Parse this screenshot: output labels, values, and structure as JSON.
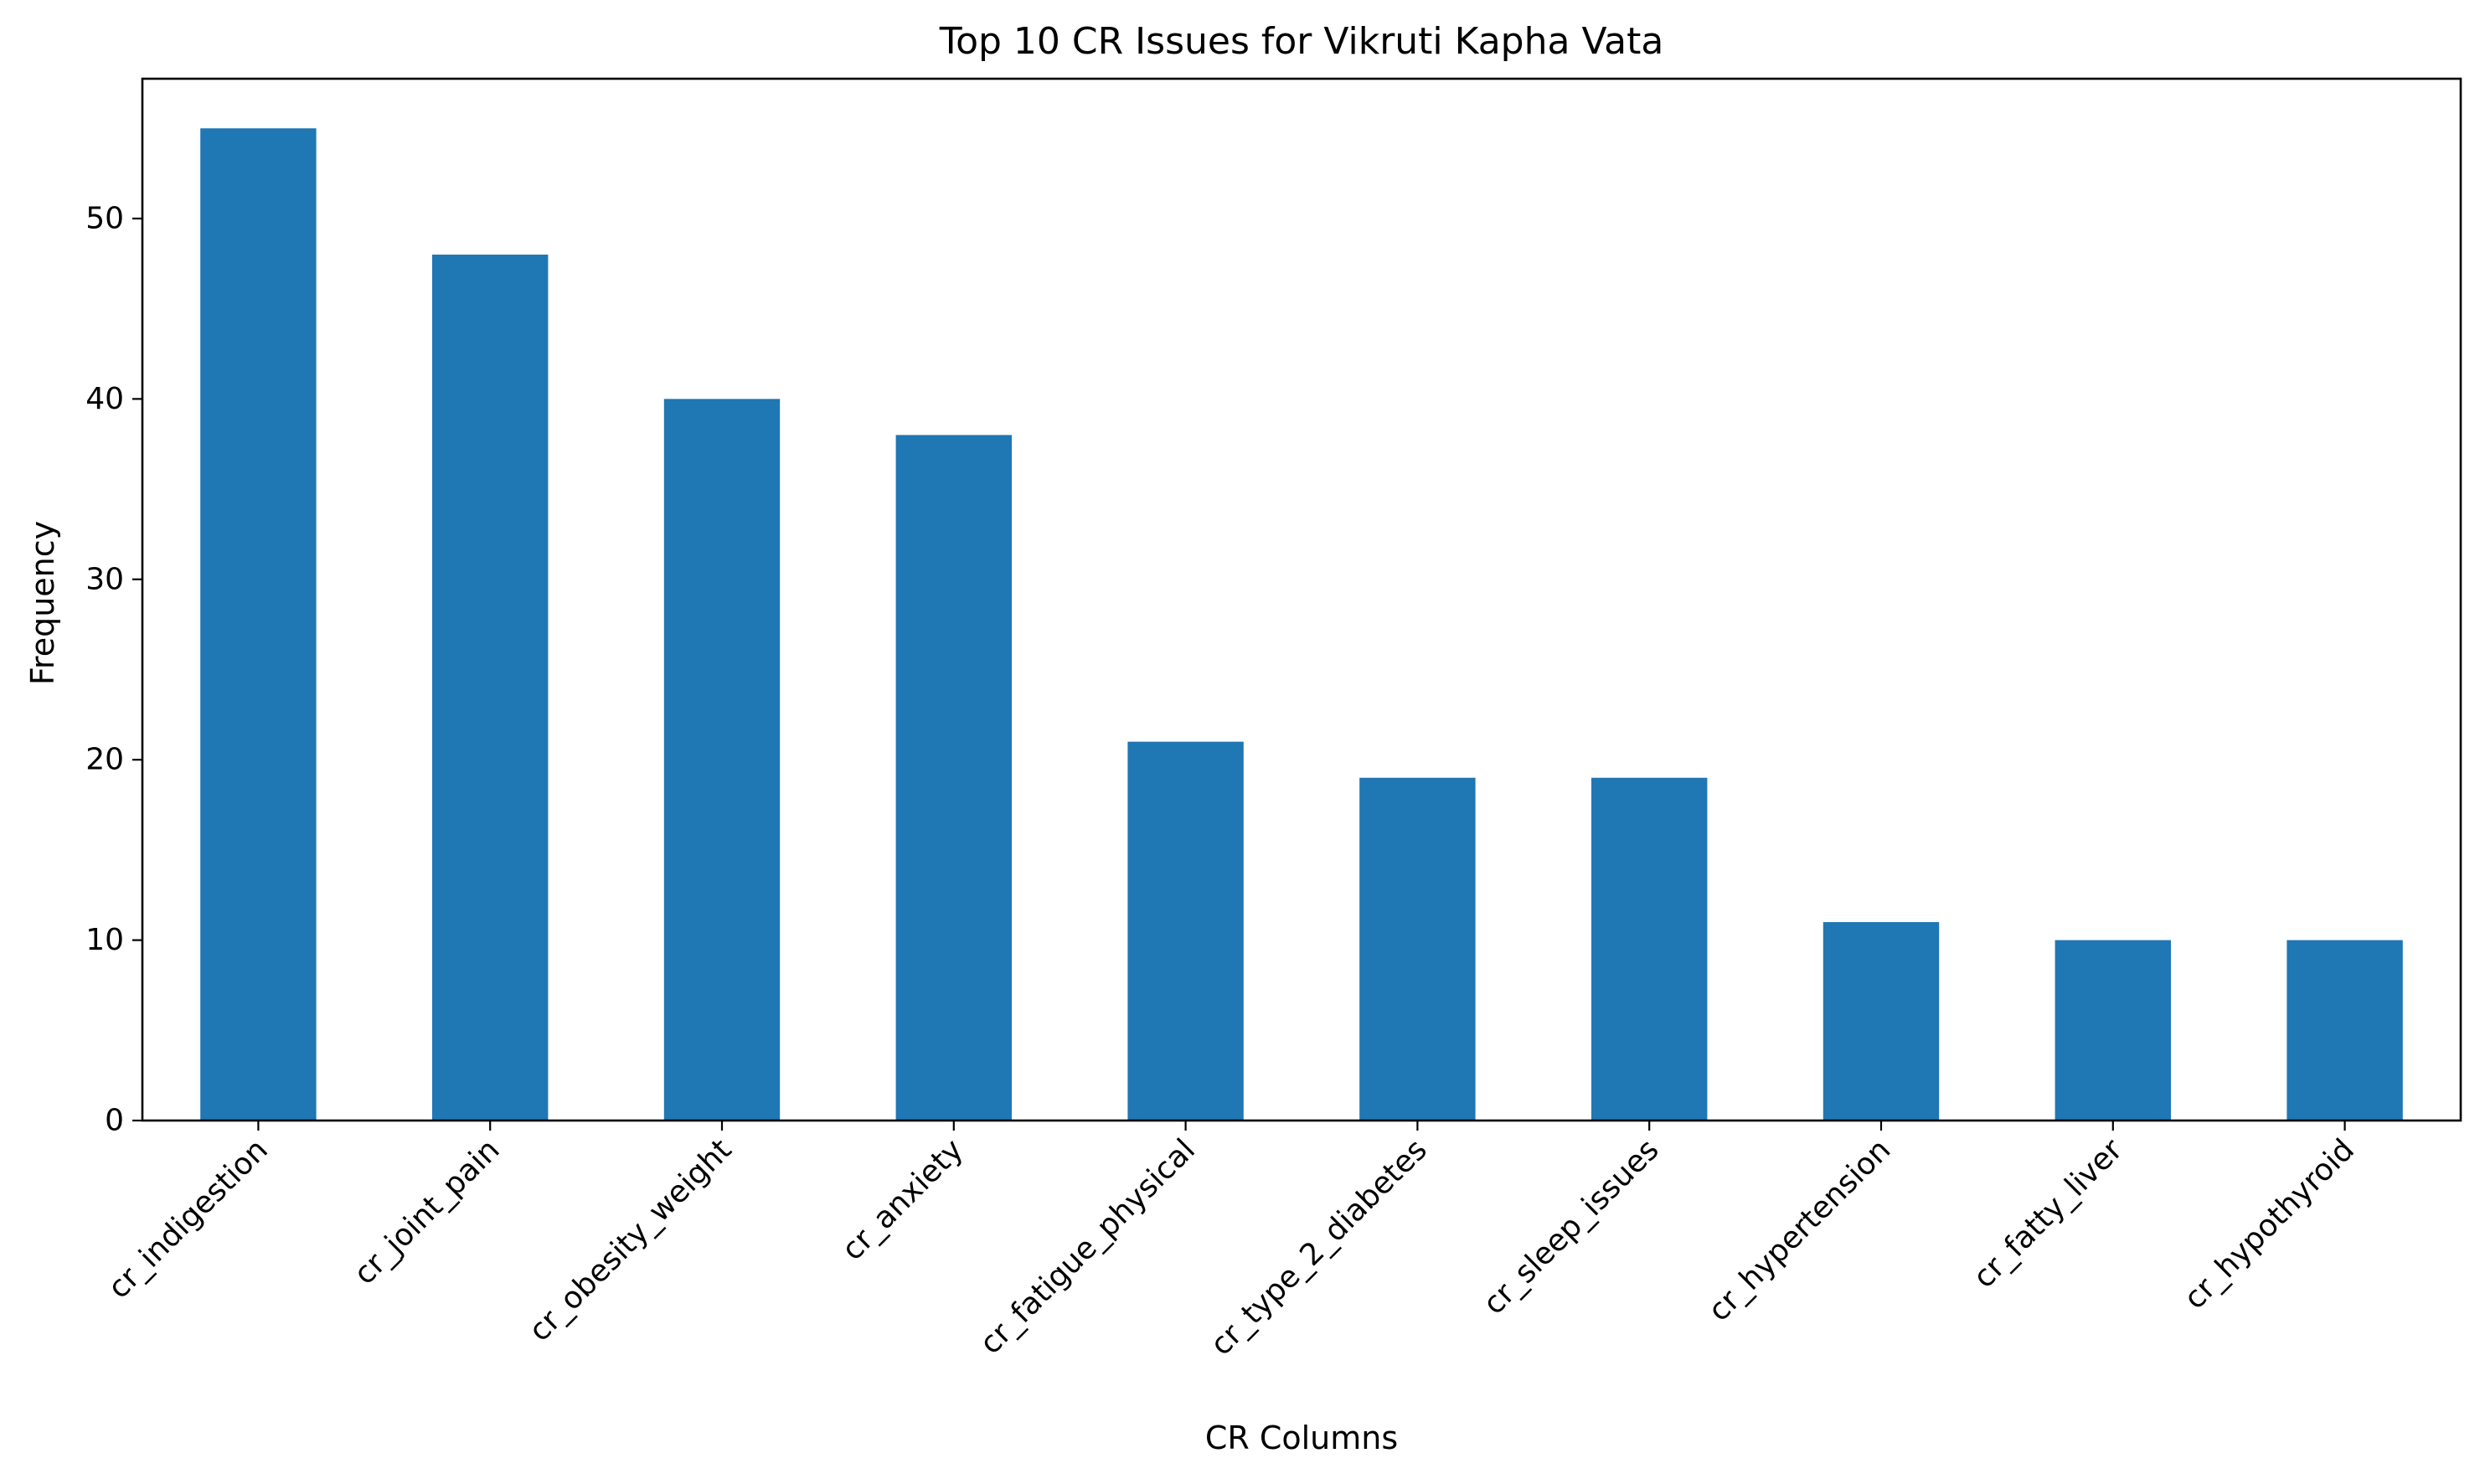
{
  "chart_data": {
    "type": "bar",
    "title": "Top 10 CR Issues for Vikruti Kapha Vata",
    "xlabel": "CR Columns",
    "ylabel": "Frequency",
    "categories": [
      "cr_indigestion",
      "cr_joint_pain",
      "cr_obesity_weight",
      "cr_anxiety",
      "cr_fatigue_physical",
      "cr_type_2_diabetes",
      "cr_sleep_issues",
      "cr_hypertension",
      "cr_fatty_liver",
      "cr_hypothyroid"
    ],
    "values": [
      55,
      48,
      40,
      38,
      21,
      19,
      19,
      11,
      10,
      10
    ],
    "ylim": [
      0,
      57.75
    ],
    "yticks": [
      0,
      10,
      20,
      30,
      40,
      50
    ],
    "grid": false,
    "legend": "none",
    "bar_color": "#1f77b4"
  }
}
